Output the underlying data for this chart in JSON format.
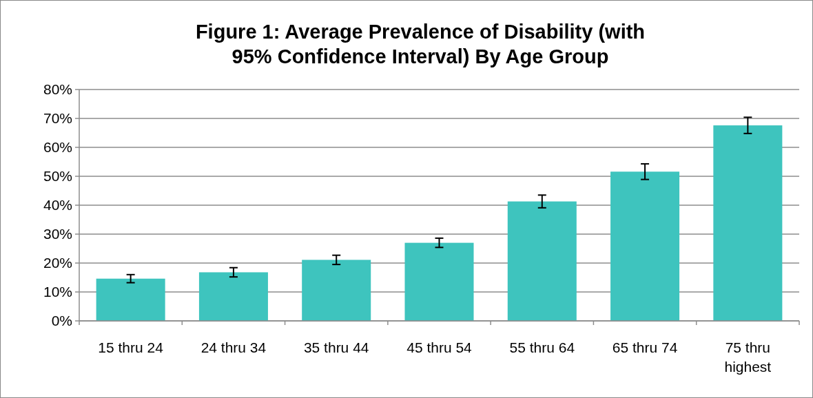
{
  "chart_data": {
    "type": "bar",
    "title": "Figure 1: Average Prevalence of Disability (with 95% Confidence Interval) By Age Group",
    "categories": [
      "15 thru 24",
      "24 thru 34",
      "35 thru 44",
      "45 thru 54",
      "55 thru 64",
      "65 thru 74",
      "75 thru highest"
    ],
    "values": [
      14.6,
      16.8,
      21.1,
      27.0,
      41.3,
      51.6,
      67.6
    ],
    "errors": [
      1.4,
      1.6,
      1.6,
      1.6,
      2.2,
      2.7,
      2.8
    ],
    "color": "#3ec4be",
    "ylim": [
      0,
      80
    ],
    "yticks": [
      {
        "value": 0,
        "label": "0%"
      },
      {
        "value": 10,
        "label": "10%"
      },
      {
        "value": 20,
        "label": "20%"
      },
      {
        "value": 30,
        "label": "30%"
      },
      {
        "value": 40,
        "label": "40%"
      },
      {
        "value": 50,
        "label": "50%"
      },
      {
        "value": 60,
        "label": "60%"
      },
      {
        "value": 70,
        "label": "70%"
      },
      {
        "value": 80,
        "label": "80%"
      }
    ],
    "grid": "y"
  }
}
